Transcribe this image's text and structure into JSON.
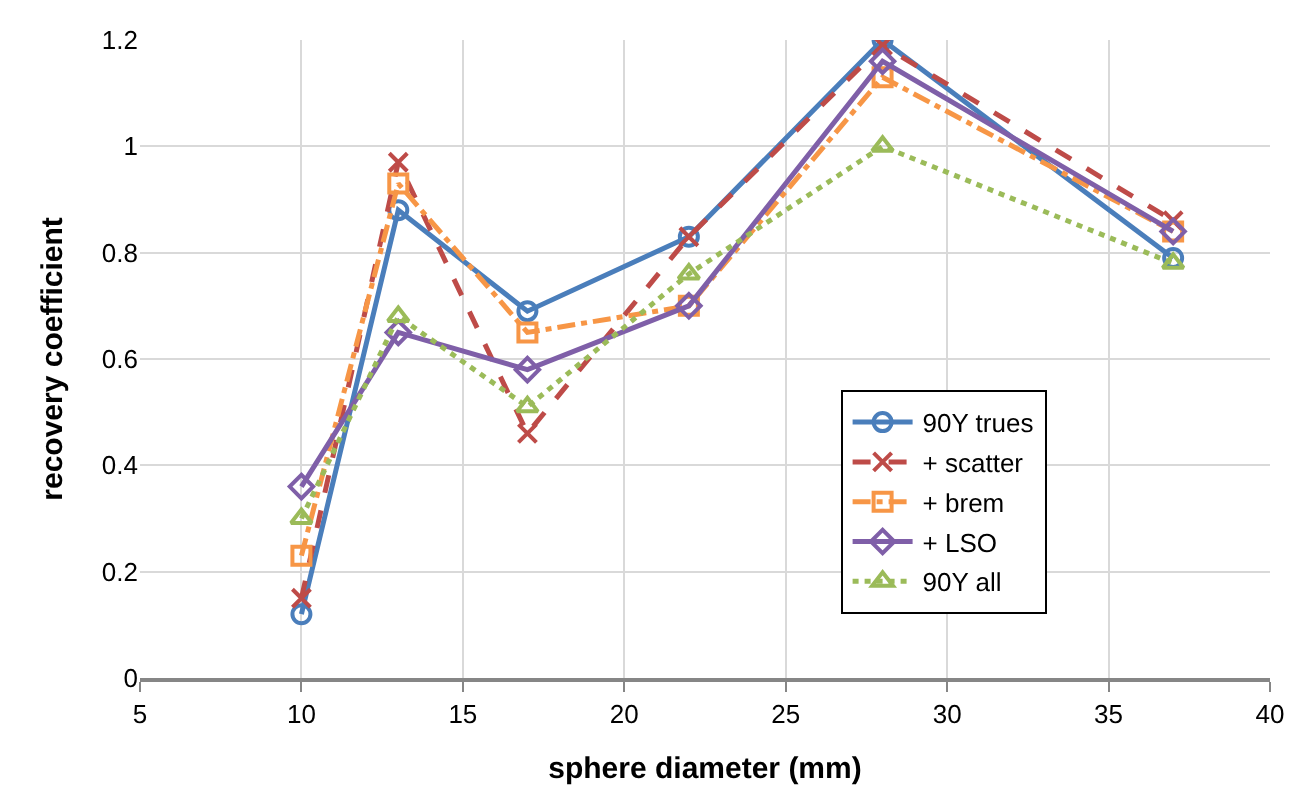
{
  "chart_data": {
    "type": "line",
    "xlabel": "sphere diameter (mm)",
    "ylabel": "recovery coefficient",
    "x": [
      10,
      13,
      17,
      22,
      28,
      37
    ],
    "series": [
      {
        "name": "90Y trues",
        "color": "#4a7ebb",
        "values": [
          0.12,
          0.88,
          0.69,
          0.83,
          1.2,
          0.79
        ],
        "marker": "circle",
        "line_style": "solid"
      },
      {
        "name": "+ scatter",
        "color": "#be4b48",
        "values": [
          0.15,
          0.97,
          0.46,
          0.83,
          1.19,
          0.86
        ],
        "marker": "cross",
        "line_style": "dashed"
      },
      {
        "name": "+ brem",
        "color": "#f79646",
        "values": [
          0.23,
          0.93,
          0.65,
          0.7,
          1.13,
          0.84
        ],
        "marker": "square",
        "line_style": "dashdot"
      },
      {
        "name": "+ LSO",
        "color": "#7f5fa8",
        "values": [
          0.36,
          0.65,
          0.58,
          0.7,
          1.16,
          0.84
        ],
        "marker": "diamond",
        "line_style": "solid"
      },
      {
        "name": "90Y all",
        "color": "#9bbb59",
        "values": [
          0.3,
          0.68,
          0.51,
          0.76,
          1.0,
          0.78
        ],
        "marker": "triangle",
        "line_style": "dotted"
      }
    ],
    "xlim": [
      5,
      40
    ],
    "xticks": [
      5,
      10,
      15,
      20,
      25,
      30,
      35,
      40
    ],
    "ylim": [
      0,
      1.2
    ],
    "yticks": [
      0,
      0.2,
      0.4,
      0.6,
      0.8,
      1,
      1.2
    ],
    "grid": true,
    "legend": "bottom right"
  }
}
